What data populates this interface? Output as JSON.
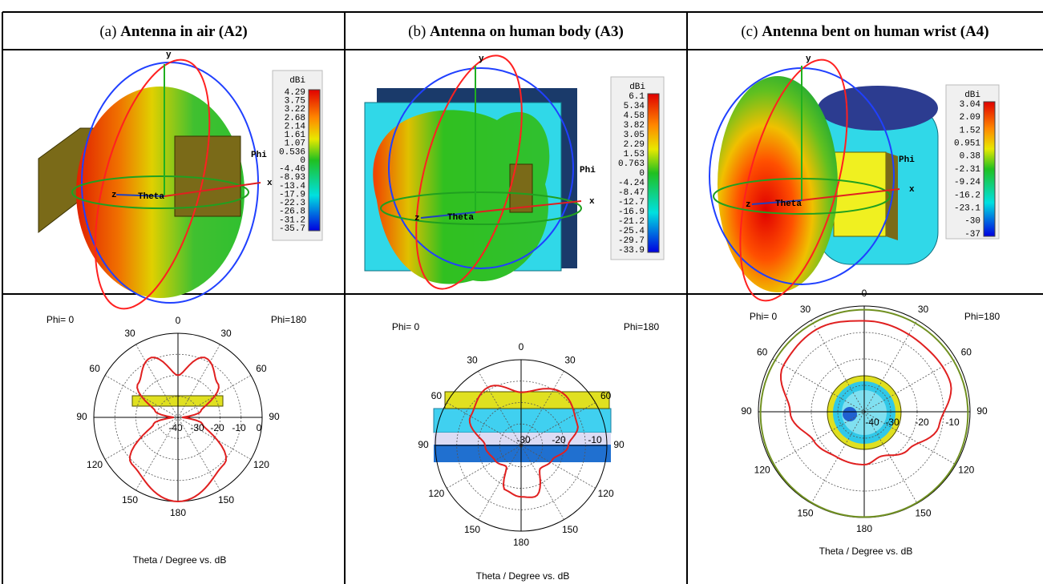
{
  "columns": [
    {
      "tag": "(a)",
      "title": "Antenna in air (A2)",
      "pattern_3d": {
        "labels": {
          "y": "y",
          "x": "x",
          "z": "z",
          "theta": "Theta",
          "phi": "Phi"
        },
        "unit": "dBi",
        "scale": [
          "4.29",
          "3.75",
          "3.22",
          "2.68",
          "2.14",
          "1.61",
          "1.07",
          "0.536",
          "0",
          "-4.46",
          "-8.93",
          "-13.4",
          "-17.9",
          "-22.3",
          "-26.8",
          "-31.2",
          "-35.7"
        ]
      },
      "polar": {
        "phi_left": "Phi= 0",
        "phi_right": "Phi=180",
        "angles": [
          "0",
          "30",
          "30",
          "60",
          "60",
          "90",
          "90",
          "120",
          "120",
          "150",
          "150",
          "180"
        ],
        "radial": [
          "-40",
          "-30",
          "-20",
          "-10",
          "0"
        ],
        "caption": "Theta / Degree vs. dB"
      }
    },
    {
      "tag": "(b)",
      "title": "Antenna on human body (A3)",
      "pattern_3d": {
        "labels": {
          "y": "y",
          "x": "x",
          "z": "z",
          "theta": "Theta",
          "phi": "Phi"
        },
        "unit": "dBi",
        "scale": [
          "6.1",
          "5.34",
          "4.58",
          "3.82",
          "3.05",
          "2.29",
          "1.53",
          "0.763",
          "0",
          "-4.24",
          "-8.47",
          "-12.7",
          "-16.9",
          "-21.2",
          "-25.4",
          "-29.7",
          "-33.9"
        ]
      },
      "polar": {
        "phi_left": "Phi= 0",
        "phi_right": "Phi=180",
        "angles": [
          "0",
          "30",
          "30",
          "60",
          "60",
          "90",
          "90",
          "120",
          "120",
          "150",
          "150",
          "180"
        ],
        "radial": [
          "-30",
          "-20",
          "-10"
        ],
        "caption": "Theta / Degree vs. dB"
      }
    },
    {
      "tag": "(c)",
      "title": "Antenna bent on human wrist (A4)",
      "pattern_3d": {
        "labels": {
          "y": "y",
          "x": "x",
          "z": "z",
          "theta": "Theta",
          "phi": "Phi"
        },
        "unit": "dBi",
        "scale": [
          "3.04",
          "2.09",
          "1.52",
          "0.951",
          "0.38",
          "-2.31",
          "-9.24",
          "-16.2",
          "-23.1",
          "-30",
          "-37"
        ]
      },
      "polar": {
        "phi_left": "Phi= 0",
        "phi_right": "Phi=180",
        "angles": [
          "0",
          "30",
          "30",
          "60",
          "60",
          "90",
          "90",
          "120",
          "120",
          "150",
          "150",
          "180"
        ],
        "radial": [
          "-40",
          "-30",
          "-20",
          "-10"
        ],
        "caption": "Theta / Degree vs. dB"
      }
    }
  ]
}
